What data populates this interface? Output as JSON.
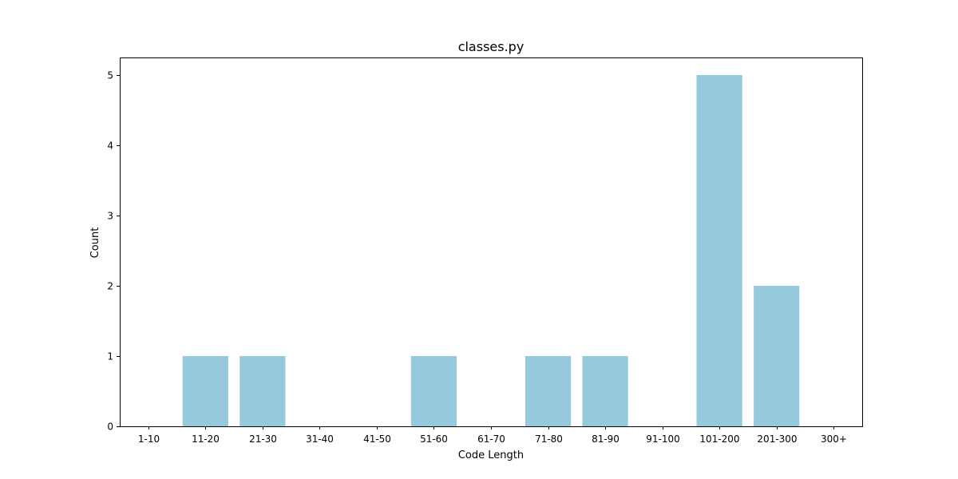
{
  "chart_data": {
    "type": "bar",
    "title": "classes.py",
    "xlabel": "Code Length",
    "ylabel": "Count",
    "categories": [
      "1-10",
      "11-20",
      "21-30",
      "31-40",
      "41-50",
      "51-60",
      "61-70",
      "71-80",
      "81-90",
      "91-100",
      "101-200",
      "201-300",
      "300+"
    ],
    "values": [
      0,
      1,
      1,
      0,
      0,
      1,
      0,
      1,
      1,
      0,
      5,
      2,
      0
    ],
    "yticks": [
      0,
      1,
      2,
      3,
      4,
      5
    ],
    "ylim": [
      0,
      5.25
    ],
    "grid": false,
    "bar_color": "#96c9dd"
  }
}
